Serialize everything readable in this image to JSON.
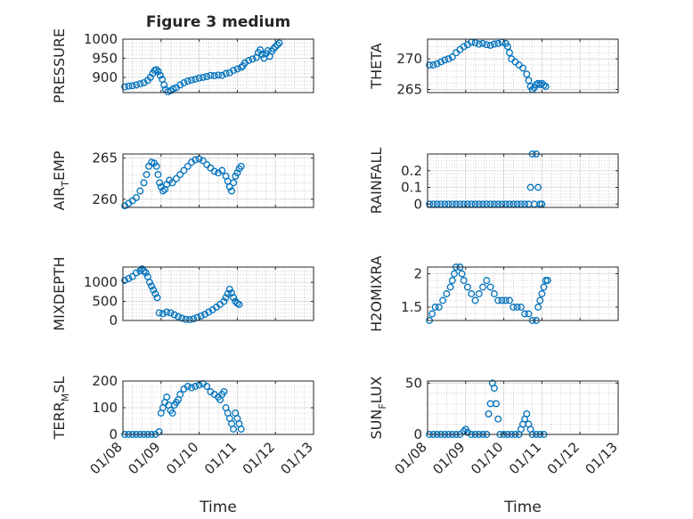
{
  "figure_title": "Figure 3 medium",
  "x_ticks": [
    "01/08",
    "01/09",
    "01/10",
    "01/11",
    "01/12",
    "01/13"
  ],
  "x_label": "Time",
  "colors": {
    "marker": "#0072BD",
    "axis": "#262626",
    "grid": "#b0b0b0"
  },
  "chart_data": [
    {
      "type": "scatter",
      "ylabel": "PRESSURE",
      "xlim": [
        0,
        5
      ],
      "ylim": [
        860,
        1000
      ],
      "yticks": [
        900,
        950,
        1000
      ],
      "points": [
        [
          0.05,
          875
        ],
        [
          0.15,
          877
        ],
        [
          0.25,
          878
        ],
        [
          0.35,
          880
        ],
        [
          0.45,
          883
        ],
        [
          0.55,
          886
        ],
        [
          0.65,
          892
        ],
        [
          0.72,
          900
        ],
        [
          0.78,
          910
        ],
        [
          0.83,
          918
        ],
        [
          0.88,
          920
        ],
        [
          0.93,
          915
        ],
        [
          0.98,
          905
        ],
        [
          1.03,
          895
        ],
        [
          1.08,
          880
        ],
        [
          1.12,
          868
        ],
        [
          1.18,
          862
        ],
        [
          1.25,
          865
        ],
        [
          1.32,
          870
        ],
        [
          1.4,
          873
        ],
        [
          1.5,
          880
        ],
        [
          1.6,
          886
        ],
        [
          1.7,
          890
        ],
        [
          1.8,
          893
        ],
        [
          1.9,
          895
        ],
        [
          2.0,
          898
        ],
        [
          2.1,
          900
        ],
        [
          2.2,
          902
        ],
        [
          2.3,
          905
        ],
        [
          2.4,
          904
        ],
        [
          2.5,
          906
        ],
        [
          2.6,
          905
        ],
        [
          2.7,
          910
        ],
        [
          2.8,
          912
        ],
        [
          2.9,
          918
        ],
        [
          3.0,
          922
        ],
        [
          3.1,
          926
        ],
        [
          3.15,
          930
        ],
        [
          3.2,
          938
        ],
        [
          3.3,
          944
        ],
        [
          3.4,
          948
        ],
        [
          3.5,
          952
        ],
        [
          3.55,
          965
        ],
        [
          3.6,
          972
        ],
        [
          3.65,
          960
        ],
        [
          3.7,
          950
        ],
        [
          3.75,
          962
        ],
        [
          3.8,
          970
        ],
        [
          3.85,
          955
        ],
        [
          3.9,
          968
        ],
        [
          3.95,
          975
        ],
        [
          4.0,
          980
        ],
        [
          4.05,
          985
        ],
        [
          4.1,
          990
        ]
      ]
    },
    {
      "type": "scatter",
      "ylabel": "THETA",
      "xlim": [
        0,
        5
      ],
      "ylim": [
        264.5,
        273.2
      ],
      "yticks": [
        265,
        270
      ],
      "points": [
        [
          0.05,
          269
        ],
        [
          0.15,
          269
        ],
        [
          0.25,
          269.2
        ],
        [
          0.35,
          269.5
        ],
        [
          0.45,
          269.8
        ],
        [
          0.55,
          270
        ],
        [
          0.65,
          270.3
        ],
        [
          0.75,
          271
        ],
        [
          0.85,
          271.5
        ],
        [
          0.95,
          272
        ],
        [
          1.05,
          272.3
        ],
        [
          1.15,
          272.7
        ],
        [
          1.25,
          272.6
        ],
        [
          1.35,
          272.4
        ],
        [
          1.45,
          272.5
        ],
        [
          1.55,
          272.3
        ],
        [
          1.65,
          272.2
        ],
        [
          1.75,
          272.4
        ],
        [
          1.85,
          272.5
        ],
        [
          1.95,
          272.7
        ],
        [
          2.05,
          272.5
        ],
        [
          2.1,
          272
        ],
        [
          2.15,
          271
        ],
        [
          2.2,
          270
        ],
        [
          2.3,
          269.5
        ],
        [
          2.4,
          269
        ],
        [
          2.5,
          268.5
        ],
        [
          2.6,
          267.5
        ],
        [
          2.65,
          266.5
        ],
        [
          2.7,
          265.5
        ],
        [
          2.75,
          265
        ],
        [
          2.8,
          265.3
        ],
        [
          2.85,
          265.8
        ],
        [
          2.9,
          266
        ],
        [
          2.95,
          265.8
        ],
        [
          3.0,
          266
        ],
        [
          3.05,
          265.7
        ],
        [
          3.1,
          265.5
        ]
      ]
    },
    {
      "type": "scatter",
      "ylabel": "AIR_TEMP",
      "xlim": [
        0,
        5
      ],
      "ylim": [
        259,
        265.5
      ],
      "yticks": [
        260,
        265
      ],
      "points": [
        [
          0.05,
          259.2
        ],
        [
          0.15,
          259.5
        ],
        [
          0.25,
          259.8
        ],
        [
          0.35,
          260.2
        ],
        [
          0.45,
          261
        ],
        [
          0.55,
          262
        ],
        [
          0.62,
          263
        ],
        [
          0.68,
          264
        ],
        [
          0.75,
          264.5
        ],
        [
          0.82,
          264.4
        ],
        [
          0.88,
          264
        ],
        [
          0.92,
          263
        ],
        [
          0.96,
          262
        ],
        [
          1.0,
          261.5
        ],
        [
          1.05,
          261
        ],
        [
          1.1,
          261.2
        ],
        [
          1.15,
          261.8
        ],
        [
          1.22,
          262.3
        ],
        [
          1.3,
          262
        ],
        [
          1.4,
          262.5
        ],
        [
          1.5,
          263
        ],
        [
          1.6,
          263.5
        ],
        [
          1.7,
          264
        ],
        [
          1.8,
          264.5
        ],
        [
          1.9,
          264.8
        ],
        [
          2.0,
          264.9
        ],
        [
          2.1,
          264.7
        ],
        [
          2.2,
          264.2
        ],
        [
          2.3,
          263.8
        ],
        [
          2.4,
          263.4
        ],
        [
          2.5,
          263.2
        ],
        [
          2.6,
          263.5
        ],
        [
          2.7,
          262.8
        ],
        [
          2.75,
          262.2
        ],
        [
          2.8,
          261.5
        ],
        [
          2.85,
          261
        ],
        [
          2.9,
          262
        ],
        [
          2.95,
          262.8
        ],
        [
          3.0,
          263.2
        ],
        [
          3.05,
          263.7
        ],
        [
          3.1,
          264
        ]
      ]
    },
    {
      "type": "scatter",
      "ylabel": "RAINFALL",
      "xlim": [
        0,
        5
      ],
      "ylim": [
        -0.02,
        0.3
      ],
      "yticks": [
        0,
        0.1,
        0.2
      ],
      "points": [
        [
          0.05,
          0
        ],
        [
          0.15,
          0
        ],
        [
          0.25,
          0
        ],
        [
          0.35,
          0
        ],
        [
          0.45,
          0
        ],
        [
          0.55,
          0
        ],
        [
          0.65,
          0
        ],
        [
          0.75,
          0
        ],
        [
          0.85,
          0
        ],
        [
          0.95,
          0
        ],
        [
          1.05,
          0
        ],
        [
          1.15,
          0
        ],
        [
          1.25,
          0
        ],
        [
          1.35,
          0
        ],
        [
          1.45,
          0
        ],
        [
          1.55,
          0
        ],
        [
          1.65,
          0
        ],
        [
          1.75,
          0
        ],
        [
          1.85,
          0
        ],
        [
          1.95,
          0
        ],
        [
          2.05,
          0
        ],
        [
          2.15,
          0
        ],
        [
          2.25,
          0
        ],
        [
          2.35,
          0
        ],
        [
          2.45,
          0
        ],
        [
          2.55,
          0
        ],
        [
          2.65,
          0
        ],
        [
          2.7,
          0.1
        ],
        [
          2.75,
          0.3
        ],
        [
          2.8,
          0
        ],
        [
          2.85,
          0.3
        ],
        [
          2.9,
          0.1
        ],
        [
          2.95,
          0
        ],
        [
          3.0,
          0
        ]
      ]
    },
    {
      "type": "scatter",
      "ylabel": "MIXDEPTH",
      "xlim": [
        0,
        5
      ],
      "ylim": [
        0,
        1400
      ],
      "yticks": [
        0,
        500,
        1000
      ],
      "points": [
        [
          0.05,
          1050
        ],
        [
          0.15,
          1100
        ],
        [
          0.25,
          1150
        ],
        [
          0.35,
          1250
        ],
        [
          0.45,
          1300
        ],
        [
          0.5,
          1350
        ],
        [
          0.55,
          1300
        ],
        [
          0.6,
          1250
        ],
        [
          0.65,
          1150
        ],
        [
          0.7,
          1000
        ],
        [
          0.75,
          900
        ],
        [
          0.8,
          800
        ],
        [
          0.85,
          700
        ],
        [
          0.9,
          600
        ],
        [
          0.95,
          200
        ],
        [
          1.05,
          180
        ],
        [
          1.15,
          220
        ],
        [
          1.25,
          200
        ],
        [
          1.35,
          150
        ],
        [
          1.45,
          100
        ],
        [
          1.55,
          60
        ],
        [
          1.65,
          30
        ],
        [
          1.75,
          20
        ],
        [
          1.85,
          40
        ],
        [
          1.95,
          80
        ],
        [
          2.05,
          120
        ],
        [
          2.15,
          160
        ],
        [
          2.25,
          220
        ],
        [
          2.35,
          280
        ],
        [
          2.45,
          350
        ],
        [
          2.55,
          420
        ],
        [
          2.65,
          500
        ],
        [
          2.7,
          600
        ],
        [
          2.75,
          700
        ],
        [
          2.8,
          820
        ],
        [
          2.85,
          720
        ],
        [
          2.9,
          600
        ],
        [
          2.95,
          500
        ],
        [
          3.0,
          450
        ],
        [
          3.05,
          420
        ]
      ]
    },
    {
      "type": "scatter",
      "ylabel": "H2OMIXRA",
      "xlim": [
        0,
        5
      ],
      "ylim": [
        1.3,
        2.1
      ],
      "yticks": [
        1.5,
        2
      ],
      "points": [
        [
          0.05,
          1.3
        ],
        [
          0.12,
          1.4
        ],
        [
          0.2,
          1.5
        ],
        [
          0.3,
          1.5
        ],
        [
          0.4,
          1.6
        ],
        [
          0.5,
          1.7
        ],
        [
          0.6,
          1.8
        ],
        [
          0.65,
          1.9
        ],
        [
          0.7,
          2.0
        ],
        [
          0.75,
          2.1
        ],
        [
          0.85,
          2.1
        ],
        [
          0.9,
          2.0
        ],
        [
          0.95,
          1.9
        ],
        [
          1.05,
          1.8
        ],
        [
          1.15,
          1.7
        ],
        [
          1.25,
          1.6
        ],
        [
          1.35,
          1.7
        ],
        [
          1.45,
          1.8
        ],
        [
          1.55,
          1.9
        ],
        [
          1.65,
          1.8
        ],
        [
          1.75,
          1.7
        ],
        [
          1.85,
          1.6
        ],
        [
          1.95,
          1.6
        ],
        [
          2.05,
          1.6
        ],
        [
          2.15,
          1.6
        ],
        [
          2.25,
          1.5
        ],
        [
          2.35,
          1.5
        ],
        [
          2.45,
          1.5
        ],
        [
          2.55,
          1.4
        ],
        [
          2.65,
          1.4
        ],
        [
          2.75,
          1.3
        ],
        [
          2.85,
          1.3
        ],
        [
          2.9,
          1.5
        ],
        [
          2.95,
          1.6
        ],
        [
          3.0,
          1.7
        ],
        [
          3.05,
          1.8
        ],
        [
          3.1,
          1.9
        ],
        [
          3.15,
          1.9
        ]
      ]
    },
    {
      "type": "scatter",
      "ylabel": "TERR_MSL",
      "xlim": [
        0,
        5
      ],
      "ylim": [
        0,
        200
      ],
      "yticks": [
        0,
        100,
        200
      ],
      "points": [
        [
          0.05,
          0
        ],
        [
          0.15,
          0
        ],
        [
          0.25,
          0
        ],
        [
          0.35,
          0
        ],
        [
          0.45,
          0
        ],
        [
          0.55,
          0
        ],
        [
          0.65,
          0
        ],
        [
          0.75,
          0
        ],
        [
          0.85,
          0
        ],
        [
          0.95,
          10
        ],
        [
          1.0,
          80
        ],
        [
          1.05,
          100
        ],
        [
          1.1,
          120
        ],
        [
          1.15,
          140
        ],
        [
          1.2,
          110
        ],
        [
          1.25,
          90
        ],
        [
          1.3,
          80
        ],
        [
          1.35,
          110
        ],
        [
          1.4,
          120
        ],
        [
          1.45,
          130
        ],
        [
          1.5,
          150
        ],
        [
          1.6,
          170
        ],
        [
          1.7,
          180
        ],
        [
          1.8,
          175
        ],
        [
          1.9,
          180
        ],
        [
          2.0,
          185
        ],
        [
          2.1,
          190
        ],
        [
          2.2,
          180
        ],
        [
          2.3,
          160
        ],
        [
          2.4,
          150
        ],
        [
          2.5,
          140
        ],
        [
          2.55,
          130
        ],
        [
          2.6,
          150
        ],
        [
          2.65,
          160
        ],
        [
          2.7,
          100
        ],
        [
          2.75,
          80
        ],
        [
          2.8,
          60
        ],
        [
          2.85,
          40
        ],
        [
          2.9,
          20
        ],
        [
          2.95,
          80
        ],
        [
          3.0,
          60
        ],
        [
          3.05,
          40
        ],
        [
          3.1,
          20
        ]
      ]
    },
    {
      "type": "scatter",
      "ylabel": "SUN_FLUX",
      "xlim": [
        0,
        5
      ],
      "ylim": [
        0,
        52
      ],
      "yticks": [
        0,
        50
      ],
      "points": [
        [
          0.05,
          0
        ],
        [
          0.15,
          0
        ],
        [
          0.25,
          0
        ],
        [
          0.35,
          0
        ],
        [
          0.45,
          0
        ],
        [
          0.55,
          0
        ],
        [
          0.65,
          0
        ],
        [
          0.75,
          0
        ],
        [
          0.85,
          0
        ],
        [
          0.95,
          3
        ],
        [
          1.0,
          5
        ],
        [
          1.05,
          2
        ],
        [
          1.15,
          0
        ],
        [
          1.25,
          0
        ],
        [
          1.35,
          0
        ],
        [
          1.45,
          0
        ],
        [
          1.55,
          0
        ],
        [
          1.6,
          20
        ],
        [
          1.65,
          30
        ],
        [
          1.7,
          50
        ],
        [
          1.75,
          45
        ],
        [
          1.8,
          30
        ],
        [
          1.85,
          15
        ],
        [
          1.9,
          0
        ],
        [
          2.0,
          0
        ],
        [
          2.1,
          0
        ],
        [
          2.2,
          0
        ],
        [
          2.3,
          0
        ],
        [
          2.4,
          0
        ],
        [
          2.45,
          5
        ],
        [
          2.5,
          10
        ],
        [
          2.55,
          15
        ],
        [
          2.6,
          20
        ],
        [
          2.65,
          10
        ],
        [
          2.7,
          5
        ],
        [
          2.75,
          0
        ],
        [
          2.85,
          0
        ],
        [
          2.95,
          0
        ],
        [
          3.05,
          0
        ]
      ]
    }
  ]
}
